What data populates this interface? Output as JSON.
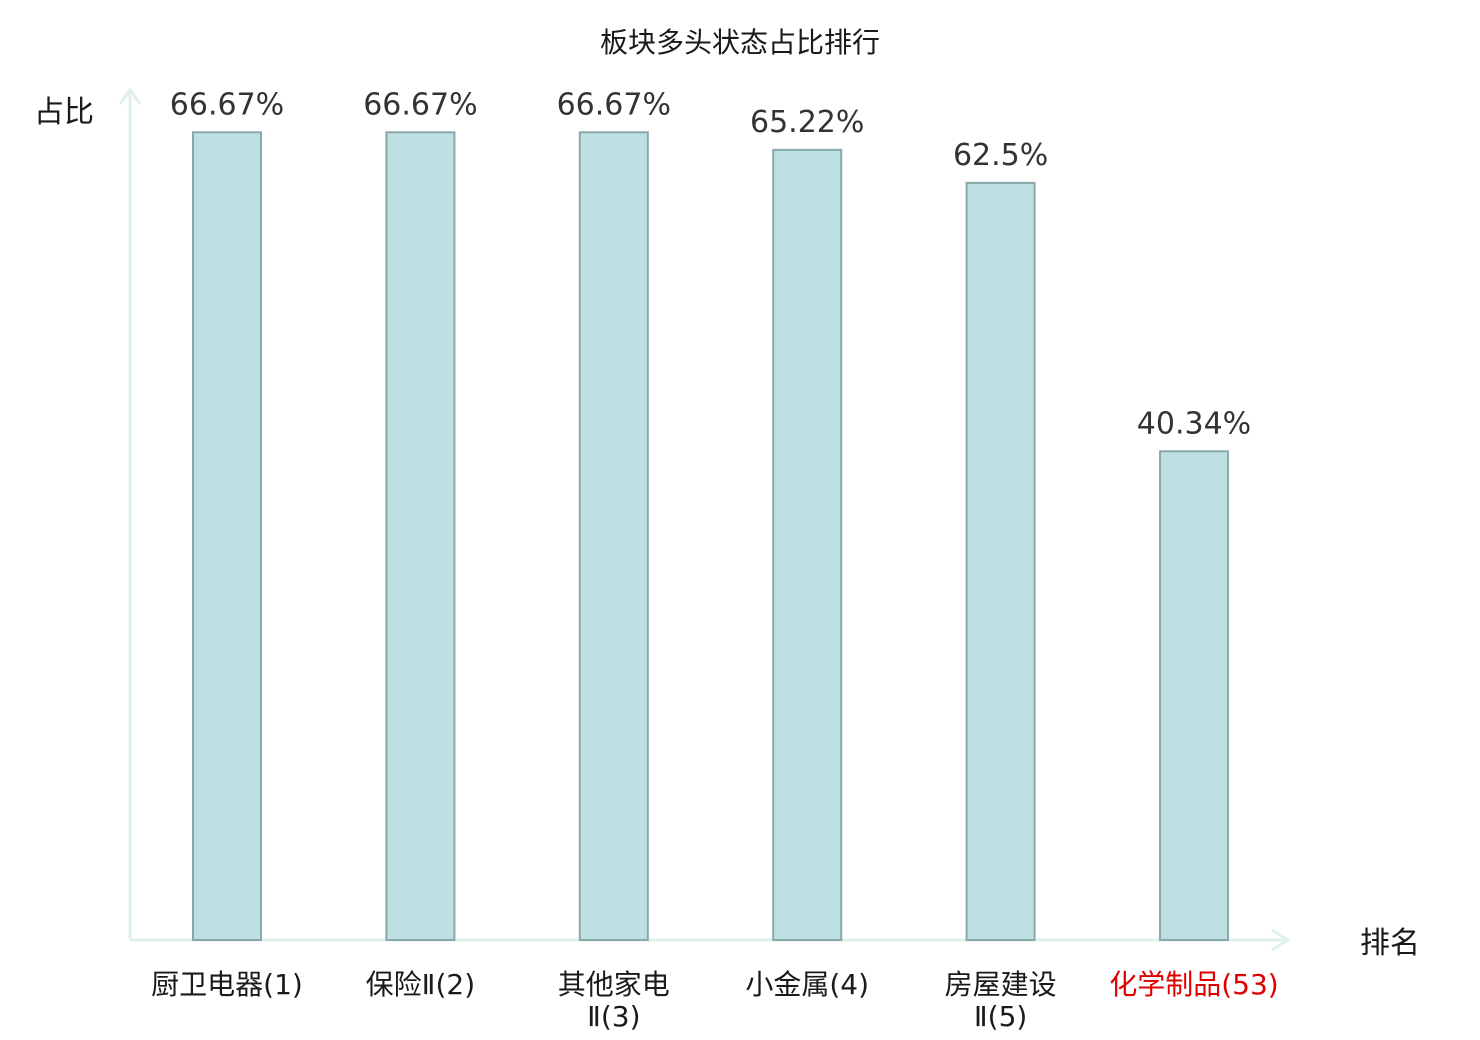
{
  "chart_data": {
    "type": "bar",
    "title": "板块多头状态占比排行",
    "xlabel": "排名",
    "ylabel": "占比",
    "categories": [
      {
        "name": "厨卫电器",
        "rank": "(1)",
        "lines": [
          "厨卫电器(1)"
        ]
      },
      {
        "name": "保险Ⅱ",
        "rank": "(2)",
        "lines": [
          "保险Ⅱ(2)"
        ]
      },
      {
        "name": "其他家电Ⅱ",
        "rank": "(3)",
        "lines": [
          "其他家电",
          "Ⅱ(3)"
        ]
      },
      {
        "name": "小金属",
        "rank": "(4)",
        "lines": [
          "小金属(4)"
        ]
      },
      {
        "name": "房屋建设Ⅱ",
        "rank": "(5)",
        "lines": [
          "房屋建设",
          "Ⅱ(5)"
        ]
      },
      {
        "name": "化学制品",
        "rank": "(53)",
        "lines": [
          "化学制品(53)"
        ],
        "highlight": true
      }
    ],
    "values": [
      66.67,
      66.67,
      66.67,
      65.22,
      62.5,
      40.34
    ],
    "value_labels": [
      "66.67%",
      "66.67%",
      "66.67%",
      "65.22%",
      "62.5%",
      "40.34%"
    ],
    "ylim": [
      0,
      70
    ],
    "grid": false,
    "colors": {
      "bar_fill": "#bde1e3",
      "bar_stroke": "#8aa8aa",
      "axis": "#dff1ee",
      "highlight": "#e00000"
    }
  }
}
